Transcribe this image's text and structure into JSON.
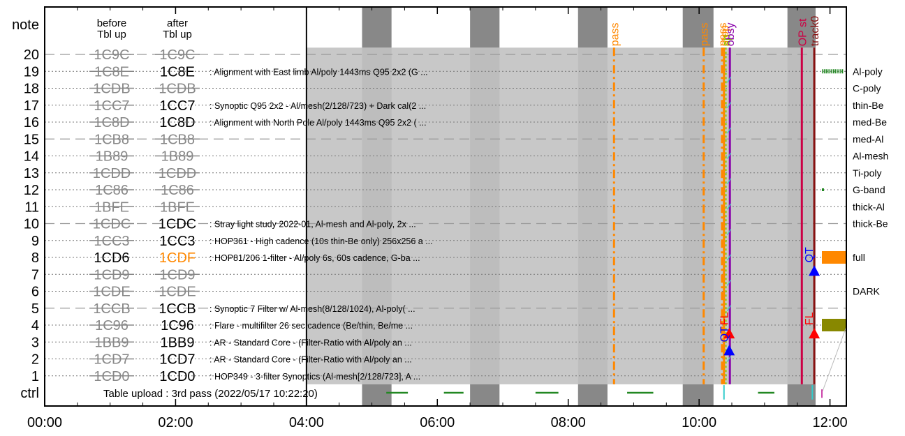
{
  "chart_data": {
    "type": "timeline",
    "x_ticks": [
      "00:00",
      "02:00",
      "04:00",
      "06:00",
      "08:00",
      "10:00",
      "12:00"
    ],
    "x_range_hours": [
      0,
      12.25
    ],
    "y_labels_left": [
      "ctrl",
      "1",
      "2",
      "3",
      "4",
      "5",
      "6",
      "7",
      "8",
      "9",
      "10",
      "11",
      "12",
      "13",
      "14",
      "15",
      "16",
      "17",
      "18",
      "19",
      "20"
    ],
    "y_top_label": "note",
    "column_headers": {
      "before": "before\nTbl up",
      "after": "after\nTbl up"
    },
    "table_rows": [
      {
        "row": 20,
        "before": "1C9C",
        "after": "1C9C",
        "before_struck": true,
        "after_struck": true,
        "after_color": "#888888",
        "desc": ""
      },
      {
        "row": 19,
        "before": "1C8E",
        "after": "1C8E",
        "before_struck": true,
        "after_struck": false,
        "after_color": "#000000",
        "desc": "Alignment with East limb Al/poly 1443ms Q95 2x2 (G ..."
      },
      {
        "row": 18,
        "before": "1CDB",
        "after": "1CDB",
        "before_struck": true,
        "after_struck": true,
        "after_color": "#888888",
        "desc": ""
      },
      {
        "row": 17,
        "before": "1CC7",
        "after": "1CC7",
        "before_struck": true,
        "after_struck": false,
        "after_color": "#000000",
        "desc": "Synoptic Q95 2x2 - Al/mesh(2/128/723) + Dark cal(2 ..."
      },
      {
        "row": 16,
        "before": "1C8D",
        "after": "1C8D",
        "before_struck": true,
        "after_struck": false,
        "after_color": "#000000",
        "desc": "Alignment with North Pole Al/poly 1443ms Q95 2x2 ( ..."
      },
      {
        "row": 15,
        "before": "1CB8",
        "after": "1CB8",
        "before_struck": true,
        "after_struck": true,
        "after_color": "#888888",
        "desc": ""
      },
      {
        "row": 14,
        "before": "1B89",
        "after": "1B89",
        "before_struck": true,
        "after_struck": true,
        "after_color": "#888888",
        "desc": ""
      },
      {
        "row": 13,
        "before": "1CDD",
        "after": "1CDD",
        "before_struck": true,
        "after_struck": true,
        "after_color": "#888888",
        "desc": ""
      },
      {
        "row": 12,
        "before": "1C86",
        "after": "1C86",
        "before_struck": true,
        "after_struck": true,
        "after_color": "#888888",
        "desc": ""
      },
      {
        "row": 11,
        "before": "1BFE",
        "after": "1BFE",
        "before_struck": true,
        "after_struck": true,
        "after_color": "#888888",
        "desc": ""
      },
      {
        "row": 10,
        "before": "1CDC",
        "after": "1CDC",
        "before_struck": true,
        "after_struck": false,
        "after_color": "#000000",
        "desc": "Stray light study 2022-01, Al-mesh and Al-poly, 2x ..."
      },
      {
        "row": 9,
        "before": "1CC3",
        "after": "1CC3",
        "before_struck": true,
        "after_struck": false,
        "after_color": "#000000",
        "desc": "HOP361 - High cadence (10s thin-Be only) 256x256 a ..."
      },
      {
        "row": 8,
        "before": "1CD6",
        "after": "1CDF",
        "before_struck": false,
        "after_struck": false,
        "after_color": "#ff8800",
        "desc": "HOP81/206 1-filter - Al/poly 6s, 60s cadence, G-ba ..."
      },
      {
        "row": 7,
        "before": "1CD9",
        "after": "1CD9",
        "before_struck": true,
        "after_struck": true,
        "after_color": "#888888",
        "desc": ""
      },
      {
        "row": 6,
        "before": "1CDE",
        "after": "1CDE",
        "before_struck": true,
        "after_struck": true,
        "after_color": "#888888",
        "desc": ""
      },
      {
        "row": 5,
        "before": "1CCB",
        "after": "1CCB",
        "before_struck": true,
        "after_struck": false,
        "after_color": "#000000",
        "desc": "Synoptic 7 Filter w/ Al-mesh(8/128/1024), Al-poly( ..."
      },
      {
        "row": 4,
        "before": "1C96",
        "after": "1C96",
        "before_struck": true,
        "after_struck": false,
        "after_color": "#000000",
        "desc": "Flare - multifilter 26 sec cadence (Be/thin, Be/me ..."
      },
      {
        "row": 3,
        "before": "1BB9",
        "after": "1BB9",
        "before_struck": true,
        "after_struck": false,
        "after_color": "#000000",
        "desc": "AR - Standard Core - (Filter-Ratio with Al/poly an ..."
      },
      {
        "row": 2,
        "before": "1CD7",
        "after": "1CD7",
        "before_struck": true,
        "after_struck": false,
        "after_color": "#000000",
        "desc": "AR - Standard Core - (Filter-Ratio with Al/poly an ..."
      },
      {
        "row": 1,
        "before": "1CD0",
        "after": "1CD0",
        "before_struck": true,
        "after_struck": false,
        "after_color": "#000000",
        "desc": "HOP349 - 3-filter Synoptics (Al-mesh[2/128/723], A ..."
      }
    ],
    "ctrl_text": "Table upload : 3rd pass (2022/05/17 10:22:20)",
    "right_filter_labels": [
      {
        "row": 19,
        "label": "Al-poly"
      },
      {
        "row": 18,
        "label": "C-poly"
      },
      {
        "row": 17,
        "label": "thin-Be"
      },
      {
        "row": 16,
        "label": "med-Be"
      },
      {
        "row": 15,
        "label": "med-Al"
      },
      {
        "row": 14,
        "label": "Al-mesh"
      },
      {
        "row": 13,
        "label": "Ti-poly"
      },
      {
        "row": 12,
        "label": "G-band"
      },
      {
        "row": 11,
        "label": "thick-Al"
      },
      {
        "row": 10,
        "label": "thick-Be"
      },
      {
        "row": 8,
        "label": "full"
      },
      {
        "row": 6,
        "label": "DARK"
      }
    ],
    "gray_region_hours": [
      4.0,
      11.75
    ],
    "night_bands_hours": [
      [
        4.85,
        5.3
      ],
      [
        6.5,
        6.95
      ],
      [
        8.15,
        8.6
      ],
      [
        9.75,
        10.22
      ],
      [
        11.35,
        11.78
      ]
    ],
    "vlines": [
      {
        "hour": 8.7,
        "label": "pass",
        "color": "#ff8800",
        "style": "dashdot"
      },
      {
        "hour": 10.07,
        "label": "pass",
        "color": "#ff8800",
        "style": "dashdot"
      },
      {
        "hour": 10.35,
        "label": "pass",
        "color": "#ff8800",
        "style": "dashdot"
      },
      {
        "hour": 10.38,
        "label": "stop",
        "color": "#ff8800",
        "style": "solid"
      },
      {
        "hour": 10.41,
        "label": "sp",
        "color": "#88cc00",
        "style": "dotted"
      },
      {
        "hour": 10.47,
        "label": "obsy",
        "color": "#8800aa",
        "style": "solid"
      },
      {
        "hour": 11.57,
        "label": "OP st",
        "color": "#cc0044",
        "style": "solid"
      },
      {
        "hour": 11.76,
        "label": "track0",
        "color": "#881111",
        "style": "solid"
      }
    ],
    "event_markers": [
      {
        "hour": 10.46,
        "row": 3.5,
        "color": "#ff0000",
        "shape": "triangle",
        "label": "FL"
      },
      {
        "hour": 10.46,
        "row": 2.5,
        "color": "#0000ff",
        "shape": "triangle",
        "label": "QT"
      },
      {
        "hour": 11.76,
        "row": 7.2,
        "color": "#0000ff",
        "shape": "triangle",
        "label": "QT"
      },
      {
        "hour": 11.76,
        "row": 3.5,
        "color": "#ff0000",
        "shape": "triangle",
        "label": "FL"
      }
    ],
    "ctrl_segments_hours": [
      [
        5.22,
        5.55
      ],
      [
        6.1,
        6.4
      ],
      [
        7.5,
        7.85
      ],
      [
        8.9,
        9.3
      ],
      [
        10.9,
        11.15
      ]
    ],
    "right_activity": [
      {
        "row": 19,
        "color": "#228822",
        "kind": "hatched"
      },
      {
        "row": 12,
        "color": "#228822",
        "kind": "dot"
      },
      {
        "row": 8,
        "color": "#ff8800",
        "kind": "block"
      },
      {
        "row": 4,
        "color": "#888800",
        "kind": "block"
      }
    ]
  }
}
